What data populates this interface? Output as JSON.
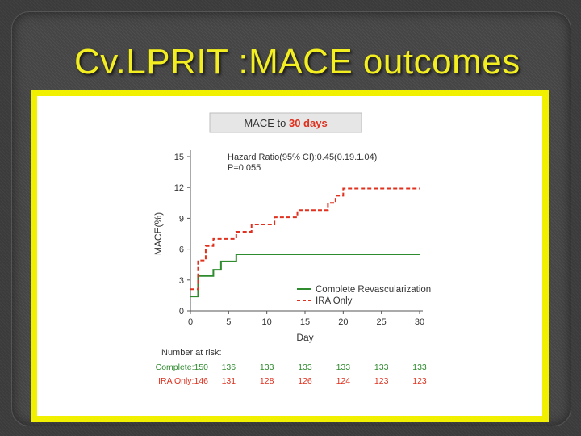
{
  "slide": {
    "title": "Cv.LPRIT :MACE outcomes"
  },
  "chart_data": {
    "type": "line",
    "header_text": "MACE to",
    "header_highlight": "30 days",
    "header_highlight_color": "#e0301e",
    "annotation_lines": [
      "Hazard Ratio(95% CI):0.45(0.19.1.04)",
      "P=0.055"
    ],
    "xlabel": "Day",
    "ylabel": "MACE(%)",
    "xlim": [
      0,
      30
    ],
    "ylim": [
      0,
      15
    ],
    "x_ticks": [
      0,
      5,
      10,
      15,
      20,
      25,
      30
    ],
    "y_ticks": [
      0,
      3,
      6,
      9,
      12,
      15
    ],
    "legend_position": "bottom-right",
    "series": [
      {
        "name": "Complete Revascularization",
        "color": "#2e8b2e",
        "style": "solid",
        "steps": [
          [
            0,
            1.4
          ],
          [
            1,
            3.4
          ],
          [
            3,
            4.0
          ],
          [
            4,
            4.8
          ],
          [
            6,
            5.5
          ],
          [
            30,
            5.5
          ]
        ]
      },
      {
        "name": "IRA Only",
        "color": "#e0301e",
        "style": "dashed",
        "steps": [
          [
            0,
            2.1
          ],
          [
            1,
            4.9
          ],
          [
            2,
            6.3
          ],
          [
            3,
            7.0
          ],
          [
            6,
            7.7
          ],
          [
            8,
            8.4
          ],
          [
            11,
            9.1
          ],
          [
            14,
            9.8
          ],
          [
            18,
            10.5
          ],
          [
            19,
            11.2
          ],
          [
            20,
            11.9
          ],
          [
            30,
            11.9
          ]
        ]
      }
    ],
    "risk_table": {
      "title": "Number at risk:",
      "rows": [
        {
          "label": "Complete:150",
          "color": "#2e8b2e",
          "values": [
            "136",
            "133",
            "133",
            "133",
            "133",
            "133"
          ]
        },
        {
          "label": "IRA Only:146",
          "color": "#e0301e",
          "values": [
            "131",
            "128",
            "126",
            "124",
            "123",
            "123"
          ]
        }
      ]
    }
  }
}
